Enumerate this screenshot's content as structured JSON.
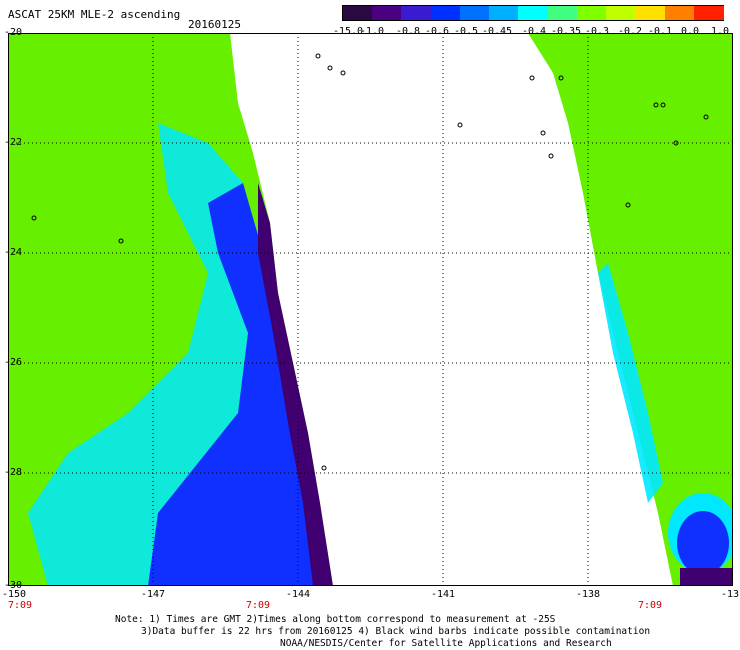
{
  "header": {
    "title": "ASCAT 25KM MLE-2 ascending",
    "date": "20160125"
  },
  "colorbar": {
    "labels": [
      "-15.0",
      "-1.0",
      "-0.8",
      "-0.6",
      "-0.5",
      "-0.45",
      "-0.4",
      "-0.35",
      "-0.3",
      "-0.2",
      "-0.1",
      "0.0",
      "1.0"
    ],
    "colors": [
      "#2a0a40",
      "#4b0082",
      "#3a1cd0",
      "#0030ff",
      "#0070ff",
      "#00b0ff",
      "#00ffff",
      "#40ff80",
      "#80ff00",
      "#c0ff00",
      "#ffe000",
      "#ff8000",
      "#ff2000"
    ]
  },
  "map": {
    "lat_labels": [
      "-20",
      "-22",
      "-24",
      "-26",
      "-28",
      "-30"
    ],
    "lon_labels": [
      "-150",
      "-147",
      "-144",
      "-141",
      "-138",
      "-13"
    ],
    "time_labels": [
      "7:09",
      "7:09",
      "7:09"
    ],
    "lat_range": [
      -30,
      -20
    ],
    "lon_range": [
      -150,
      -136.8
    ],
    "swath_left_color": "green",
    "swath_right_color": "green"
  },
  "notes": {
    "line1": "Note: 1) Times are GMT 2)Times along bottom correspond to measurement at -25S",
    "line2": "3)Data buffer is 22 hrs from 20160125 4) Black wind barbs indicate possible contamination",
    "line3": "NOAA/NESDIS/Center for Satellite Applications and Research"
  }
}
